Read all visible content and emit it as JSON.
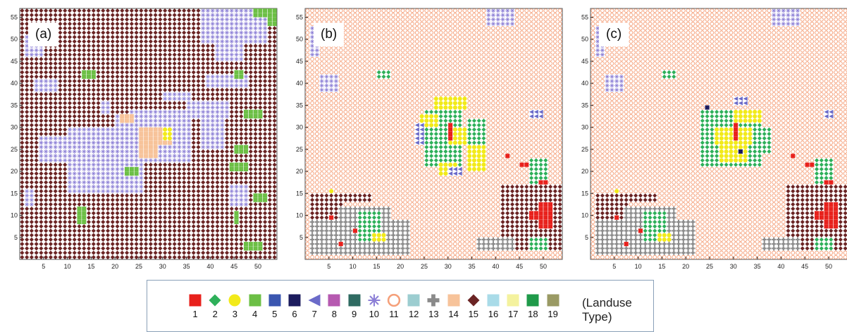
{
  "panels": [
    {
      "label": "(a)",
      "dominant": 15
    },
    {
      "label": "(b)",
      "dominant": 11
    },
    {
      "label": "(c)",
      "dominant": 11
    }
  ],
  "axes": {
    "xticks": [
      "5",
      "10",
      "15",
      "20",
      "25",
      "30",
      "35",
      "40",
      "45",
      "50"
    ],
    "yticks": [
      "5",
      "10",
      "15",
      "20",
      "25",
      "30",
      "35",
      "40",
      "45",
      "50",
      "55"
    ]
  },
  "legend": {
    "title": "(Landuse Type)",
    "items": [
      {
        "num": "1",
        "color": "#e8211c",
        "shape": "square"
      },
      {
        "num": "2",
        "color": "#2eb05a",
        "shape": "diamond"
      },
      {
        "num": "3",
        "color": "#f2ea1a",
        "shape": "circle"
      },
      {
        "num": "4",
        "color": "#6cbf45",
        "shape": "square"
      },
      {
        "num": "5",
        "color": "#3a56b0",
        "shape": "square"
      },
      {
        "num": "6",
        "color": "#1c1c5e",
        "shape": "square"
      },
      {
        "num": "7",
        "color": "#6b6bc9",
        "shape": "triangle-left"
      },
      {
        "num": "8",
        "color": "#b659b0",
        "shape": "square"
      },
      {
        "num": "9",
        "color": "#2f6b62",
        "shape": "square"
      },
      {
        "num": "10",
        "color": "#8c7fd6",
        "shape": "asterisk"
      },
      {
        "num": "11",
        "color": "#f5a07a",
        "shape": "ring"
      },
      {
        "num": "12",
        "color": "#9ccdd0",
        "shape": "square"
      },
      {
        "num": "13",
        "color": "#8a8a8a",
        "shape": "plus"
      },
      {
        "num": "14",
        "color": "#f7c39a",
        "shape": "square"
      },
      {
        "num": "15",
        "color": "#6b2424",
        "shape": "diamond"
      },
      {
        "num": "16",
        "color": "#a9dbe8",
        "shape": "square"
      },
      {
        "num": "17",
        "color": "#f4f29e",
        "shape": "square"
      },
      {
        "num": "18",
        "color": "#1f9a4a",
        "shape": "square"
      },
      {
        "num": "19",
        "color": "#9a9a64",
        "shape": "square"
      }
    ]
  },
  "chart_data": [
    {
      "type": "heatmap",
      "title": "",
      "xlabel": "",
      "ylabel": "",
      "xlim": [
        0,
        54
      ],
      "ylim": [
        0,
        57
      ],
      "background_class": 15,
      "regions": [
        {
          "class": 10,
          "rects": [
            [
              10,
              26,
              15,
              30
            ],
            [
              4,
              22,
              22,
              28
            ],
            [
              1,
              3,
              12,
              16
            ],
            [
              20,
              30,
              28,
              33
            ],
            [
              17,
              19,
              33,
              36
            ],
            [
              20,
              24,
              18,
              28
            ],
            [
              23,
              36,
              22,
              34
            ],
            [
              30,
              36,
              36,
              38
            ],
            [
              35,
              44,
              32,
              36
            ],
            [
              38,
              43,
              25,
              33
            ],
            [
              39,
              48,
              39,
              42
            ],
            [
              41,
              47,
              45,
              51
            ],
            [
              38,
              52,
              49,
              57
            ],
            [
              46,
              52,
              53,
              57
            ],
            [
              1,
              5,
              46,
              51
            ],
            [
              3,
              8,
              38,
              41
            ],
            [
              44,
              48,
              12,
              17
            ]
          ]
        },
        {
          "class": 4,
          "rects": [
            [
              13,
              16,
              41,
              43
            ],
            [
              45,
              47,
              41,
              43
            ],
            [
              47,
              51,
              32,
              34
            ],
            [
              44,
              48,
              20,
              22
            ],
            [
              45,
              48,
              24,
              26
            ],
            [
              45,
              46,
              8,
              11
            ],
            [
              47,
              51,
              2,
              4
            ],
            [
              49,
              52,
              13,
              15
            ],
            [
              49,
              54,
              55,
              57
            ],
            [
              52,
              54,
              53,
              55
            ],
            [
              12,
              14,
              8,
              12
            ],
            [
              22,
              25,
              19,
              21
            ]
          ]
        },
        {
          "class": 14,
          "rects": [
            [
              25,
              29,
              23,
              30
            ],
            [
              28,
              32,
              26,
              30
            ],
            [
              21,
              24,
              31,
              33
            ]
          ]
        },
        {
          "class": 3,
          "rects": [
            [
              30,
              32,
              27,
              30
            ]
          ]
        }
      ]
    },
    {
      "type": "heatmap",
      "title": "",
      "xlabel": "",
      "ylabel": "",
      "xlim": [
        0,
        54
      ],
      "ylim": [
        0,
        57
      ],
      "background_class": 11,
      "regions": [
        {
          "class": 10,
          "rects": [
            [
              38,
              44,
              53,
              57
            ],
            [
              1,
              3,
              46,
              53
            ],
            [
              3,
              7,
              38,
              42
            ]
          ]
        },
        {
          "class": 2,
          "rects": [
            [
              15,
              18,
              41,
              43
            ],
            [
              25,
              33,
              21,
              34
            ],
            [
              34,
              38,
              26,
              32
            ]
          ]
        },
        {
          "class": 3,
          "rects": [
            [
              27,
              34,
              34,
              37
            ],
            [
              34,
              38,
              20,
              26
            ],
            [
              28,
              32,
              19,
              22
            ],
            [
              24,
              28,
              30,
              33
            ],
            [
              30,
              34,
              26,
              30
            ]
          ]
        },
        {
          "class": 7,
          "rects": [
            [
              23,
              25,
              26,
              31
            ],
            [
              30,
              33,
              19,
              21
            ],
            [
              47,
              50,
              32,
              34
            ]
          ]
        },
        {
          "class": 15,
          "rects": [
            [
              1,
              8,
              2,
              14
            ],
            [
              41,
              54,
              2,
              17
            ],
            [
              1,
              14,
              13,
              15
            ]
          ]
        },
        {
          "class": 13,
          "rects": [
            [
              1,
              22,
              1,
              9
            ],
            [
              7,
              18,
              9,
              12
            ],
            [
              36,
              44,
              2,
              5
            ]
          ]
        },
        {
          "class": 2,
          "rects": [
            [
              11,
              16,
              4,
              11
            ],
            [
              47,
              51,
              17,
              23
            ],
            [
              47,
              51,
              2,
              5
            ]
          ]
        },
        {
          "class": 1,
          "rects": [
            [
              30,
              31,
              27,
              31
            ],
            [
              42,
              43,
              23,
              24
            ],
            [
              45,
              47,
              21,
              22
            ],
            [
              49,
              51,
              17,
              18
            ],
            [
              47,
              49,
              9,
              11
            ],
            [
              49,
              52,
              7,
              13
            ],
            [
              5,
              6,
              9,
              10
            ],
            [
              10,
              11,
              6,
              7
            ],
            [
              7,
              8,
              3,
              4
            ]
          ]
        },
        {
          "class": 3,
          "rects": [
            [
              14,
              17,
              4,
              6
            ],
            [
              5,
              6,
              15,
              16
            ]
          ]
        }
      ]
    },
    {
      "type": "heatmap",
      "title": "",
      "xlabel": "",
      "ylabel": "",
      "xlim": [
        0,
        54
      ],
      "ylim": [
        0,
        57
      ],
      "background_class": 11,
      "regions": [
        {
          "class": 10,
          "rects": [
            [
              38,
              44,
              53,
              57
            ],
            [
              1,
              3,
              46,
              53
            ],
            [
              3,
              7,
              38,
              42
            ]
          ]
        },
        {
          "class": 2,
          "rects": [
            [
              15,
              18,
              41,
              43
            ],
            [
              23,
              36,
              21,
              34
            ],
            [
              34,
              38,
              24,
              30
            ]
          ]
        },
        {
          "class": 3,
          "rects": [
            [
              26,
              34,
              26,
              30
            ],
            [
              27,
              33,
              22,
              26
            ],
            [
              30,
              36,
              31,
              34
            ]
          ]
        },
        {
          "class": 7,
          "rects": [
            [
              30,
              33,
              35,
              37
            ],
            [
              49,
              51,
              32,
              34
            ]
          ]
        },
        {
          "class": 6,
          "rects": [
            [
              24,
              25,
              34,
              35
            ],
            [
              31,
              32,
              24,
              25
            ]
          ]
        },
        {
          "class": 15,
          "rects": [
            [
              1,
              8,
              2,
              14
            ],
            [
              41,
              54,
              2,
              17
            ],
            [
              1,
              14,
              13,
              15
            ]
          ]
        },
        {
          "class": 13,
          "rects": [
            [
              1,
              22,
              1,
              9
            ],
            [
              7,
              18,
              9,
              12
            ],
            [
              36,
              44,
              2,
              5
            ]
          ]
        },
        {
          "class": 2,
          "rects": [
            [
              11,
              16,
              4,
              11
            ],
            [
              47,
              51,
              17,
              23
            ],
            [
              47,
              51,
              2,
              5
            ]
          ]
        },
        {
          "class": 1,
          "rects": [
            [
              30,
              31,
              27,
              31
            ],
            [
              42,
              43,
              23,
              24
            ],
            [
              45,
              47,
              21,
              22
            ],
            [
              49,
              51,
              17,
              18
            ],
            [
              47,
              49,
              9,
              11
            ],
            [
              49,
              52,
              7,
              13
            ],
            [
              5,
              6,
              9,
              10
            ],
            [
              10,
              11,
              6,
              7
            ],
            [
              7,
              8,
              3,
              4
            ]
          ]
        },
        {
          "class": 3,
          "rects": [
            [
              14,
              17,
              4,
              6
            ],
            [
              5,
              6,
              15,
              16
            ]
          ]
        }
      ]
    }
  ]
}
